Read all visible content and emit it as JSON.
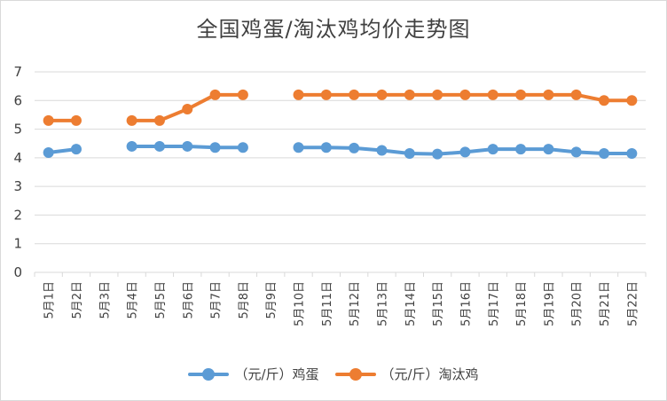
{
  "chart_data": {
    "type": "line",
    "title": "全国鸡蛋/淘汰鸡均价走势图",
    "categories": [
      "5月1日",
      "5月2日",
      "5月3日",
      "5月4日",
      "5月5日",
      "5月6日",
      "5月7日",
      "5月8日",
      "5月9日",
      "5月10日",
      "5月11日",
      "5月12日",
      "5月13日",
      "5月14日",
      "5月15日",
      "5月16日",
      "5月17日",
      "5月18日",
      "5月19日",
      "5月20日",
      "5月21日",
      "5月22日"
    ],
    "yticks": [
      "0",
      "1",
      "2",
      "3",
      "4",
      "5",
      "6",
      "7"
    ],
    "ylim": [
      0,
      7
    ],
    "grid": true,
    "legend_position": "bottom",
    "series": [
      {
        "name": "（元/斤）鸡蛋",
        "color": "#5b9bd5",
        "values": [
          4.18,
          4.3,
          null,
          4.4,
          4.4,
          4.4,
          4.36,
          4.36,
          null,
          4.36,
          4.36,
          4.34,
          4.26,
          4.15,
          4.13,
          4.2,
          4.3,
          4.3,
          4.3,
          4.2,
          4.15,
          4.15
        ]
      },
      {
        "name": "（元/斤）淘汰鸡",
        "color": "#ed7d31",
        "values": [
          5.3,
          5.3,
          null,
          5.3,
          5.3,
          5.7,
          6.2,
          6.2,
          null,
          6.2,
          6.2,
          6.2,
          6.2,
          6.2,
          6.2,
          6.2,
          6.2,
          6.2,
          6.2,
          6.2,
          6.0,
          6.0
        ]
      }
    ]
  }
}
